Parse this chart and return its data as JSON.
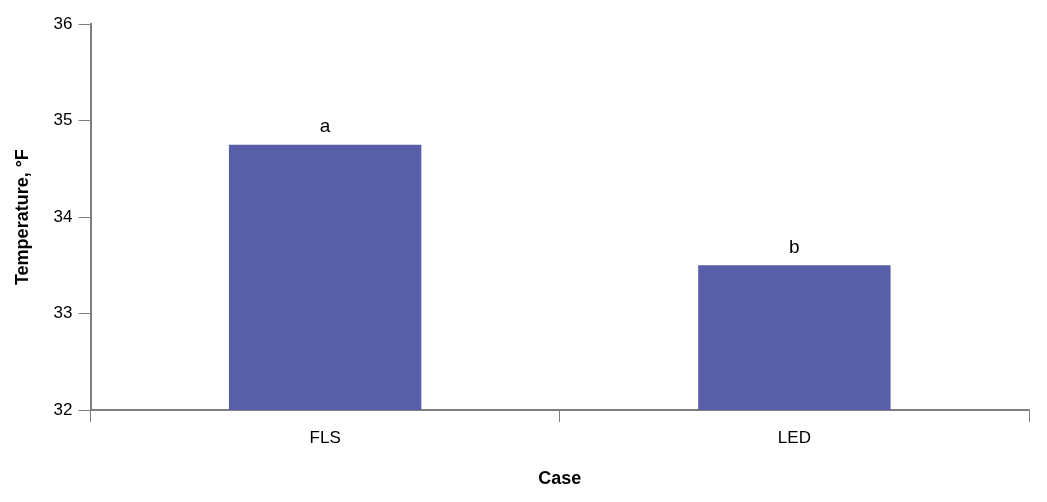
{
  "chart_data": {
    "type": "bar",
    "xlabel": "Case",
    "ylabel": "Temperature, °F",
    "categories": [
      "FLS",
      "LED"
    ],
    "values": [
      34.75,
      33.5
    ],
    "color": "#585ea8",
    "ylim": [
      32,
      36
    ],
    "yticks": [
      32,
      33,
      34,
      35,
      36
    ],
    "grid": false,
    "legend": false,
    "annotations": [
      {
        "text": "a",
        "x": "FLS",
        "y": 34.75
      },
      {
        "text": "b",
        "x": "LED",
        "y": 33.5
      }
    ]
  }
}
